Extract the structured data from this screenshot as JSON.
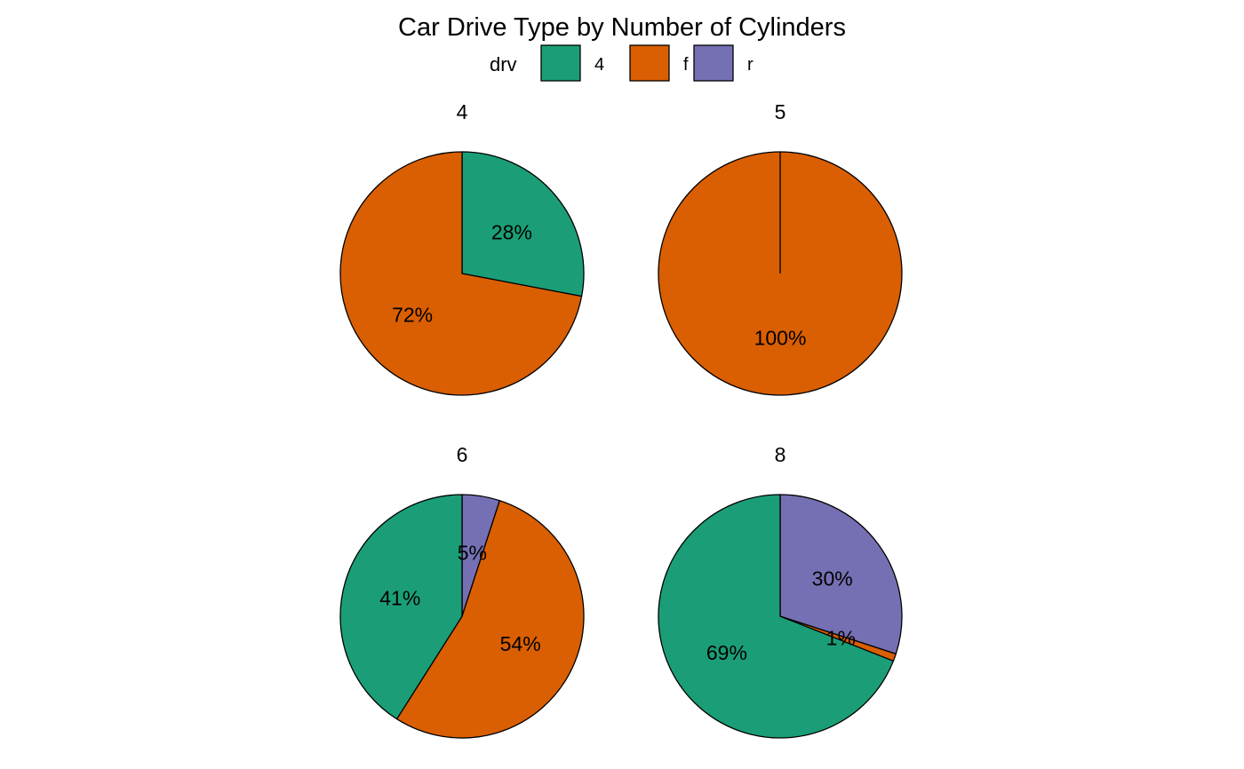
{
  "chart_data": {
    "type": "pie",
    "title": "Car Drive Type by Number of Cylinders",
    "legend": {
      "title": "drv",
      "position": "top",
      "entries": [
        {
          "key": "4",
          "color": "#1B9E77"
        },
        {
          "key": "f",
          "color": "#D95F02"
        },
        {
          "key": "r",
          "color": "#7570B3"
        }
      ]
    },
    "facets": [
      {
        "cyl": "4",
        "slices": [
          {
            "drv": "4",
            "percent": 28,
            "label": "28%"
          },
          {
            "drv": "f",
            "percent": 72,
            "label": "72%"
          }
        ]
      },
      {
        "cyl": "5",
        "slices": [
          {
            "drv": "f",
            "percent": 100,
            "label": "100%"
          }
        ]
      },
      {
        "cyl": "6",
        "slices": [
          {
            "drv": "r",
            "percent": 5,
            "label": "5%"
          },
          {
            "drv": "f",
            "percent": 54,
            "label": "54%"
          },
          {
            "drv": "4",
            "percent": 41,
            "label": "41%"
          }
        ]
      },
      {
        "cyl": "8",
        "slices": [
          {
            "drv": "r",
            "percent": 30,
            "label": "30%"
          },
          {
            "drv": "f",
            "percent": 1,
            "label": "1%"
          },
          {
            "drv": "4",
            "percent": 69,
            "label": "69%"
          }
        ]
      }
    ]
  }
}
